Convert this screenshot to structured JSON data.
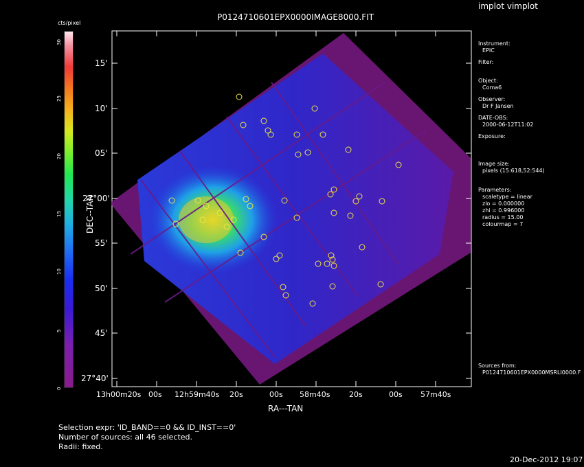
{
  "app_title": "implot vimplot",
  "image_title": "P0124710601EPX0000IMAGE8000.FIT",
  "colorbar": {
    "unit_label": "cts/pixel",
    "ticks": [
      "0",
      "5",
      "10",
      "15",
      "20",
      "25",
      "30"
    ]
  },
  "axes": {
    "xlabel": "RA---TAN",
    "ylabel": "DEC--TAN",
    "y_ticks": [
      "15'",
      "10'",
      "05'",
      "27°00'",
      "55'",
      "50'",
      "45'",
      "27°40'"
    ],
    "x_ticks": [
      "13h00m20s",
      "00s",
      "12h59m40s",
      "20s",
      "00s",
      "58m40s",
      "20s",
      "00s",
      "57m40s"
    ]
  },
  "sidebar": {
    "instrument_label": "Instrument:",
    "instrument": "EPIC",
    "filter_label": "Filter:",
    "object_label": "Object:",
    "object": "Coma6",
    "observer_label": "Observer:",
    "observer": "Dr F Jansen",
    "date_label": "DATE-OBS:",
    "date": "2000-06-12T11:02",
    "exposure_label": "Exposure:",
    "image_size_label": "Image size:",
    "image_size": "pixels (15:618,52:544)",
    "parameters_label": "Parameters:",
    "params": [
      "scaletype = linear",
      "zlo = 0.000000",
      "zhi = 0.996000",
      "radius = 15.00",
      "colourmap = 7"
    ],
    "sources_label": "Sources from:",
    "sources_file": "P0124710601EPX0000MSRLI0000.F"
  },
  "footer": {
    "selection": "Selection expr: 'ID_BAND==0 && ID_INST==0'",
    "num_sources": "Number of sources: all 46 selected.",
    "radii": "Radii: fixed.",
    "datestamp": "20-Dec-2012 19:07"
  }
}
